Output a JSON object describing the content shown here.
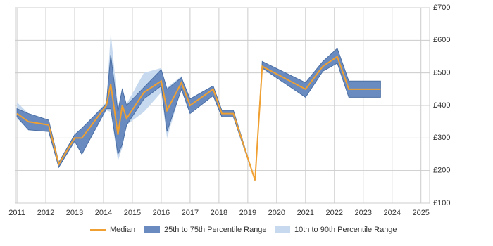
{
  "chart_data": {
    "type": "line",
    "x": [
      2011.0,
      2011.4,
      2012.1,
      2012.45,
      2013.0,
      2013.25,
      2014.1,
      2014.25,
      2014.5,
      2014.65,
      2014.8,
      2015.4,
      2016.0,
      2016.2,
      2016.7,
      2017.0,
      2017.8,
      2018.1,
      2018.5,
      2019.25,
      2019.5,
      2021.0,
      2021.6,
      2022.1,
      2022.5,
      2023.6
    ],
    "series": [
      {
        "name": "Median",
        "color": "#f0a030",
        "values": [
          375,
          350,
          340,
          220,
          300,
          300,
          400,
          465,
          310,
          400,
          360,
          440,
          475,
          385,
          470,
          400,
          450,
          375,
          375,
          170,
          520,
          450,
          520,
          550,
          450,
          450
        ]
      },
      {
        "name": "25th to 75th Percentile Range",
        "color": "#6a8bbf",
        "low": [
          365,
          325,
          320,
          210,
          290,
          250,
          390,
          390,
          250,
          280,
          340,
          420,
          460,
          320,
          450,
          375,
          430,
          365,
          365,
          170,
          515,
          425,
          505,
          530,
          425,
          425
        ],
        "high": [
          390,
          375,
          355,
          225,
          310,
          330,
          405,
          555,
          380,
          450,
          400,
          455,
          510,
          450,
          485,
          420,
          460,
          385,
          385,
          170,
          535,
          470,
          535,
          575,
          475,
          475
        ]
      },
      {
        "name": "10th to 90th Percentile Range",
        "color": "#c6d9ef",
        "low": [
          360,
          325,
          320,
          210,
          290,
          250,
          385,
          380,
          230,
          270,
          340,
          380,
          440,
          300,
          450,
          375,
          430,
          365,
          365,
          170,
          515,
          425,
          505,
          530,
          425,
          425
        ],
        "high": [
          410,
          375,
          355,
          225,
          310,
          330,
          410,
          625,
          395,
          455,
          405,
          500,
          515,
          455,
          490,
          420,
          460,
          385,
          385,
          170,
          535,
          470,
          535,
          575,
          475,
          475
        ]
      }
    ],
    "xlim": [
      2010.95,
      2025.3
    ],
    "xticks": [
      2011,
      2012,
      2013,
      2014,
      2015,
      2016,
      2017,
      2018,
      2019,
      2020,
      2021,
      2022,
      2023,
      2024,
      2025
    ],
    "ylim": [
      100,
      700
    ],
    "yticks": [
      {
        "value": 100,
        "label": "£100"
      },
      {
        "value": 200,
        "label": "£200"
      },
      {
        "value": 300,
        "label": "£300"
      },
      {
        "value": 400,
        "label": "£400"
      },
      {
        "value": 500,
        "label": "£500"
      },
      {
        "value": 600,
        "label": "£600"
      },
      {
        "value": 700,
        "label": "£700"
      }
    ],
    "grid": true
  }
}
